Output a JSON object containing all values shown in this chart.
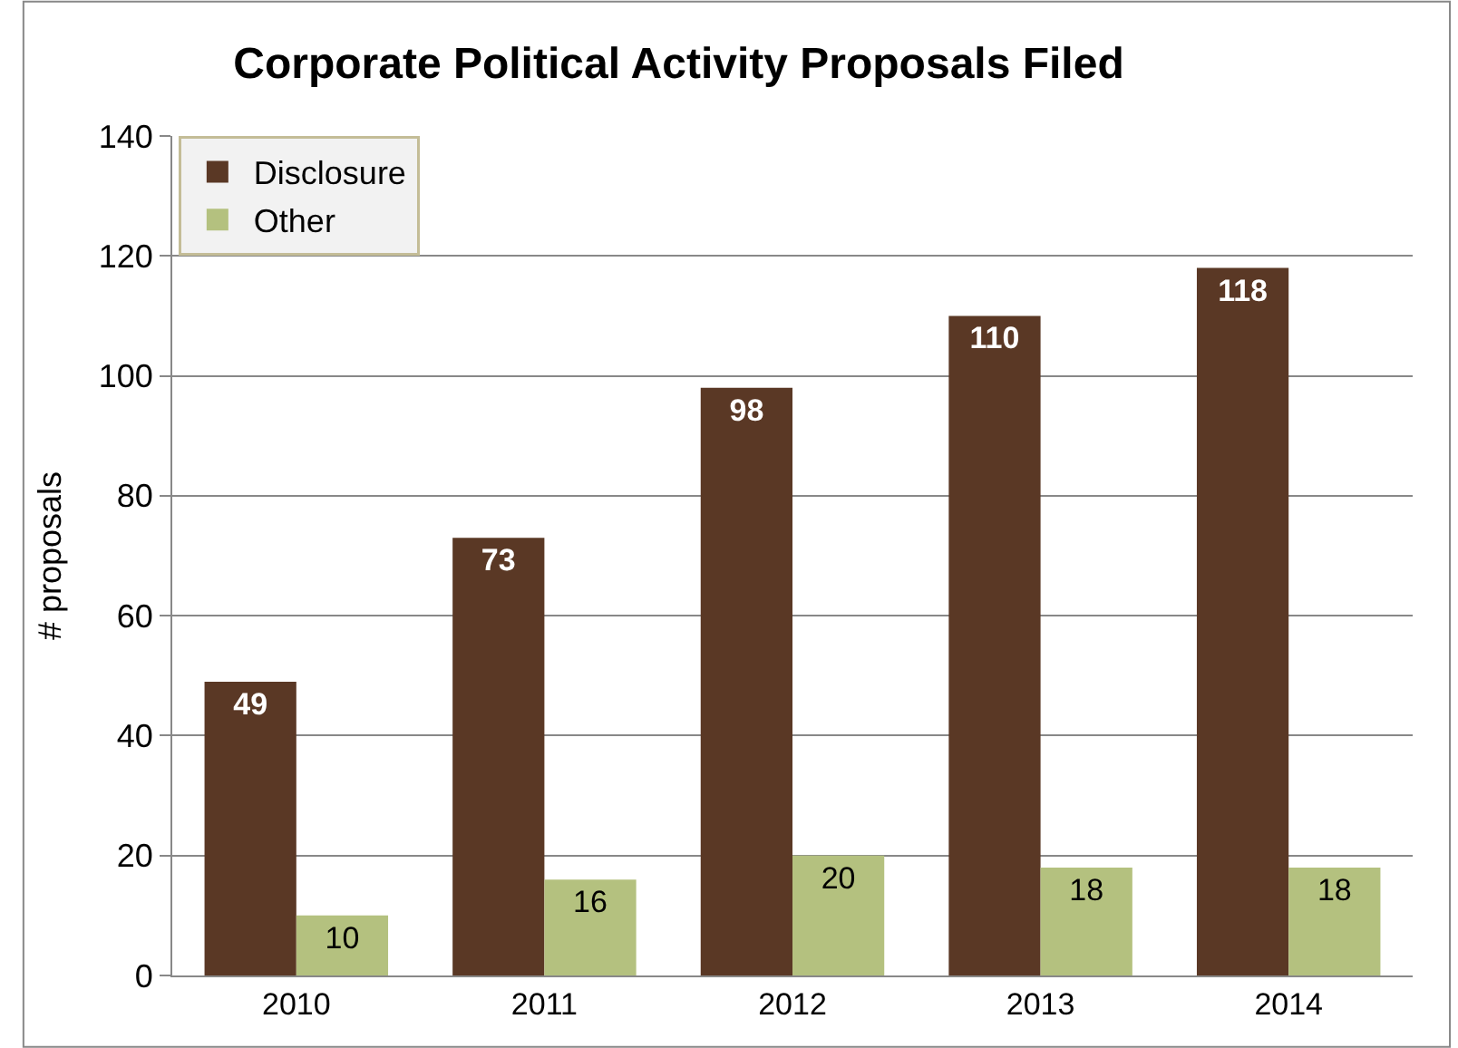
{
  "chart_data": {
    "type": "bar",
    "title": "Corporate Political Activity Proposals Filed",
    "ylabel": "# proposals",
    "categories": [
      "2010",
      "2011",
      "2012",
      "2013",
      "2014"
    ],
    "series": [
      {
        "name": "Disclosure",
        "color": "#5a3825",
        "values": [
          49,
          73,
          98,
          110,
          118
        ]
      },
      {
        "name": "Other",
        "color": "#b4c17f",
        "values": [
          10,
          16,
          20,
          18,
          18
        ]
      }
    ],
    "ylim": [
      0,
      140
    ],
    "yticks": [
      0,
      20,
      40,
      60,
      80,
      100,
      120,
      140
    ],
    "grid": "y",
    "legend": "top left",
    "data_labels": true
  }
}
